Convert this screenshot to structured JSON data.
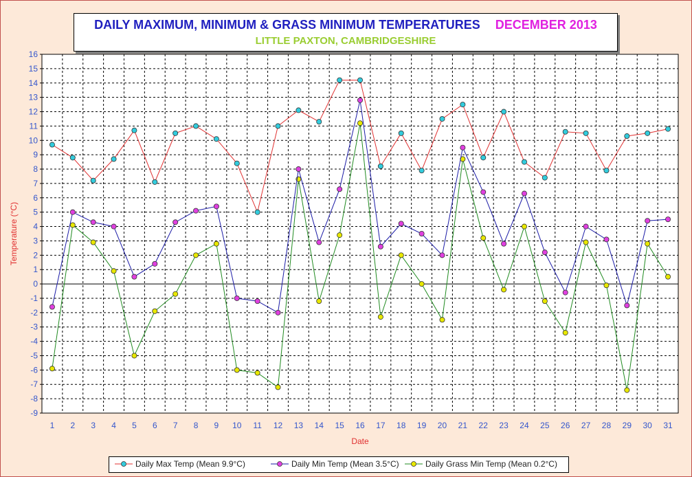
{
  "chart_data": {
    "type": "line",
    "title": "DAILY MAXIMUM, MINIMUM & GRASS MINIMUM TEMPERATURES",
    "title_period": "DECEMBER 2013",
    "subtitle": "LITTLE PAXTON, CAMBRIDGESHIRE",
    "xlabel": "Date",
    "ylabel": "Temperature (°C)",
    "ylim": [
      -9,
      16
    ],
    "grid": true,
    "legend_position": "bottom",
    "x": [
      1,
      2,
      3,
      4,
      5,
      6,
      7,
      8,
      9,
      10,
      11,
      12,
      13,
      14,
      15,
      16,
      17,
      18,
      19,
      20,
      21,
      22,
      23,
      24,
      25,
      26,
      27,
      28,
      29,
      30,
      31
    ],
    "series": [
      {
        "name": "Daily Max Temp (Mean 9.9°C)",
        "line_color": "#e03030",
        "marker_color": "#33ccdd",
        "values": [
          9.7,
          8.8,
          7.2,
          8.7,
          10.7,
          7.1,
          10.5,
          11.0,
          10.1,
          8.4,
          5.0,
          11.0,
          12.1,
          11.3,
          14.2,
          14.2,
          8.2,
          10.5,
          7.9,
          11.5,
          12.5,
          8.8,
          12.0,
          8.5,
          7.4,
          10.6,
          10.5,
          7.9,
          10.3,
          10.5,
          10.8
        ]
      },
      {
        "name": "Daily Min Temp (Mean 3.5°C)",
        "line_color": "#1a1aa6",
        "marker_color": "#e040e0",
        "values": [
          -1.6,
          5.0,
          4.3,
          4.0,
          0.5,
          1.4,
          4.3,
          5.1,
          5.4,
          -1.0,
          -1.2,
          -2.0,
          8.0,
          2.9,
          6.6,
          12.8,
          2.6,
          4.2,
          3.5,
          2.0,
          9.5,
          6.4,
          2.8,
          6.3,
          2.2,
          -0.6,
          4.0,
          3.1,
          -1.5,
          4.4,
          4.5
        ]
      },
      {
        "name": "Daily Grass Min Temp (Mean 0.2°C)",
        "line_color": "#1f8a1f",
        "marker_color": "#e8e800",
        "values": [
          -5.9,
          4.1,
          2.9,
          0.9,
          -5.0,
          -1.9,
          -0.7,
          2.0,
          2.8,
          -6.0,
          -6.2,
          -7.2,
          7.3,
          -1.2,
          3.4,
          11.2,
          -2.3,
          2.0,
          0.0,
          -2.5,
          8.7,
          3.2,
          -0.4,
          4.0,
          -1.2,
          -3.4,
          2.9,
          -0.1,
          -7.4,
          2.8,
          0.5
        ]
      }
    ]
  },
  "colors": {
    "background": "#fde9d9",
    "plot_background": "#ffffff",
    "axis_text": "#3355cc",
    "axis_title": "#e03030"
  }
}
